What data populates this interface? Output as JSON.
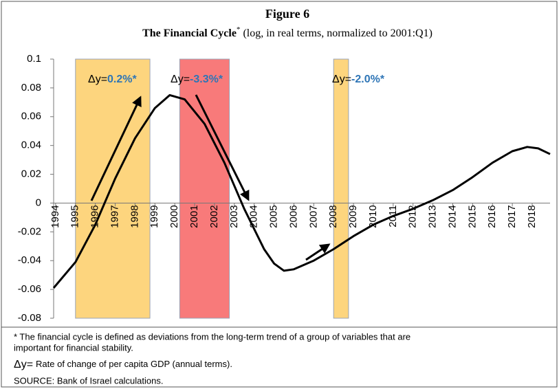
{
  "chart_data": {
    "type": "line",
    "figure_label": "Figure 6",
    "title": "The Financial Cycle",
    "title_mark": "*",
    "subtitle": "(log, in real terms, normalized to 2001:Q1)",
    "x": [
      1993.9,
      1995,
      1996,
      1997,
      1998,
      1999,
      1999.75,
      2000.5,
      2001.5,
      2002.5,
      2003.5,
      2004.5,
      2005,
      2005.5,
      2006,
      2007,
      2008,
      2009,
      2010,
      2011,
      2012,
      2013,
      2014,
      2015,
      2016,
      2017,
      2017.75,
      2018.3,
      2018.9
    ],
    "series": [
      {
        "name": "Financial cycle",
        "color": "#000000",
        "values": [
          -0.059,
          -0.041,
          -0.015,
          0.017,
          0.045,
          0.066,
          0.075,
          0.072,
          0.055,
          0.028,
          -0.004,
          -0.032,
          -0.042,
          -0.047,
          -0.046,
          -0.04,
          -0.032,
          -0.023,
          -0.015,
          -0.009,
          -0.004,
          0.002,
          0.009,
          0.018,
          0.028,
          0.036,
          0.039,
          0.038,
          0.034
        ]
      }
    ],
    "xlim": [
      1993.9,
      2018.9
    ],
    "xticks": [
      1994,
      1995,
      1996,
      1997,
      1998,
      1999,
      2000,
      2001,
      2002,
      2003,
      2004,
      2005,
      2006,
      2007,
      2008,
      2009,
      2010,
      2011,
      2012,
      2013,
      2014,
      2015,
      2016,
      2017,
      2018
    ],
    "ylim": [
      -0.08,
      0.1
    ],
    "yticks": [
      0.1,
      0.08,
      0.06,
      0.04,
      0.02,
      0,
      -0.02,
      -0.04,
      -0.06,
      -0.08
    ],
    "shaded_periods": [
      {
        "start": 1995,
        "end": 1998.75,
        "color": "#fdd57e"
      },
      {
        "start": 2000.25,
        "end": 2002.75,
        "color": "#f87a7a"
      },
      {
        "start": 2008,
        "end": 2008.75,
        "color": "#fdd57e"
      }
    ],
    "annotations": [
      {
        "prefix": "Δy=",
        "text": "0.2%*"
      },
      {
        "prefix": "Δy=",
        "text": "-3.3%*"
      },
      {
        "prefix": "Δy=",
        "text": "-2.0%*"
      }
    ],
    "footnotes": {
      "definition": [
        "* The financial cycle is defined as deviations  from the long-term trend of a group of variables that are",
        "important  for financial stability."
      ],
      "delta_symbol": "Δy=",
      "delta_text": "Rate of change of per capita GDP (annual terms).",
      "source": "SOURCE:  Bank of Israel calculations."
    }
  }
}
